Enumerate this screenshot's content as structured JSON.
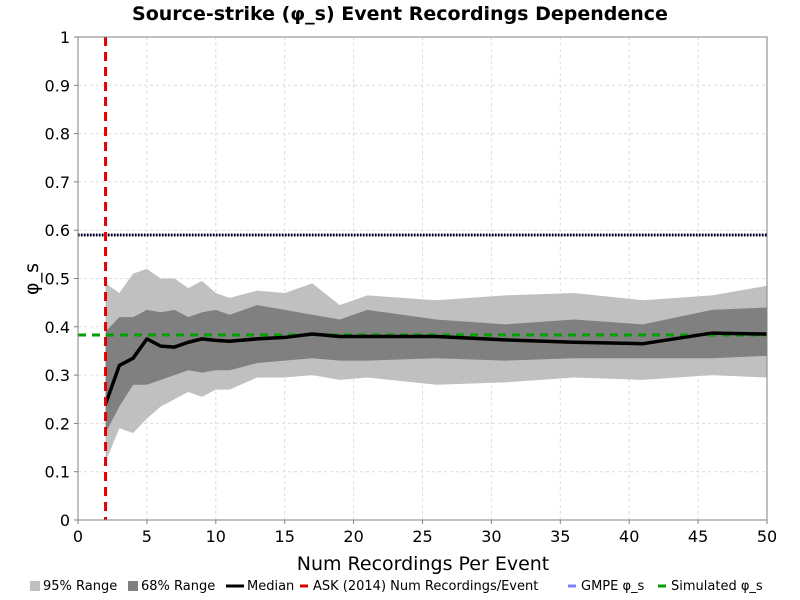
{
  "chart_data": {
    "type": "area",
    "title": "Source-strike (φ_s) Event Recordings Dependence",
    "xlabel": "Num Recordings Per Event",
    "ylabel": "φ_s",
    "xlim": [
      0,
      50
    ],
    "ylim": [
      0,
      1
    ],
    "xticks": [
      "0",
      "5",
      "10",
      "15",
      "20",
      "25",
      "30",
      "35",
      "40",
      "45",
      "50"
    ],
    "yticks": [
      "0",
      "0.1",
      "0.2",
      "0.3",
      "0.4",
      "0.5",
      "0.6",
      "0.7",
      "0.8",
      "0.9",
      "1"
    ],
    "grid": true,
    "legend_position": "bottom",
    "series": [
      {
        "name": "95% Range",
        "kind": "band",
        "color": "#c0c0c0",
        "x": [
          2,
          3,
          4,
          5,
          6,
          7,
          8,
          9,
          10,
          11,
          13,
          15,
          17,
          19,
          21,
          26,
          31,
          36,
          41,
          46,
          50
        ],
        "lower": [
          0.12,
          0.19,
          0.18,
          0.21,
          0.235,
          0.25,
          0.265,
          0.255,
          0.27,
          0.27,
          0.295,
          0.295,
          0.3,
          0.29,
          0.295,
          0.28,
          0.285,
          0.295,
          0.29,
          0.3,
          0.295
        ],
        "upper": [
          0.49,
          0.47,
          0.51,
          0.52,
          0.5,
          0.5,
          0.48,
          0.495,
          0.47,
          0.46,
          0.475,
          0.47,
          0.49,
          0.445,
          0.465,
          0.455,
          0.465,
          0.47,
          0.455,
          0.465,
          0.485
        ]
      },
      {
        "name": "68% Range",
        "kind": "band",
        "color": "#808080",
        "x": [
          2,
          3,
          4,
          5,
          6,
          7,
          8,
          9,
          10,
          11,
          13,
          15,
          17,
          19,
          21,
          26,
          31,
          36,
          41,
          46,
          50
        ],
        "lower": [
          0.18,
          0.235,
          0.28,
          0.28,
          0.29,
          0.3,
          0.31,
          0.305,
          0.31,
          0.31,
          0.325,
          0.33,
          0.335,
          0.33,
          0.33,
          0.335,
          0.33,
          0.335,
          0.335,
          0.335,
          0.34
        ],
        "upper": [
          0.39,
          0.42,
          0.42,
          0.435,
          0.43,
          0.435,
          0.42,
          0.43,
          0.435,
          0.425,
          0.445,
          0.435,
          0.425,
          0.415,
          0.435,
          0.415,
          0.405,
          0.415,
          0.405,
          0.435,
          0.44
        ]
      },
      {
        "name": "Median",
        "kind": "line",
        "color": "#000000",
        "x": [
          2,
          3,
          4,
          5,
          6,
          7,
          8,
          9,
          10,
          11,
          13,
          15,
          17,
          19,
          21,
          26,
          31,
          36,
          41,
          46,
          50
        ],
        "y": [
          0.24,
          0.32,
          0.335,
          0.375,
          0.36,
          0.358,
          0.368,
          0.375,
          0.372,
          0.37,
          0.375,
          0.378,
          0.385,
          0.38,
          0.38,
          0.38,
          0.373,
          0.368,
          0.365,
          0.387,
          0.385
        ]
      },
      {
        "name": "ASK (2014) Num Recordings/Event",
        "kind": "vline",
        "color": "#e00000",
        "x": 2
      },
      {
        "name": "GMPE φ_s",
        "kind": "hline",
        "color": "#8080ff",
        "y": 0.59
      },
      {
        "name": "Simulated φ_s",
        "kind": "hline",
        "color": "#00a000",
        "y": 0.383
      }
    ]
  }
}
